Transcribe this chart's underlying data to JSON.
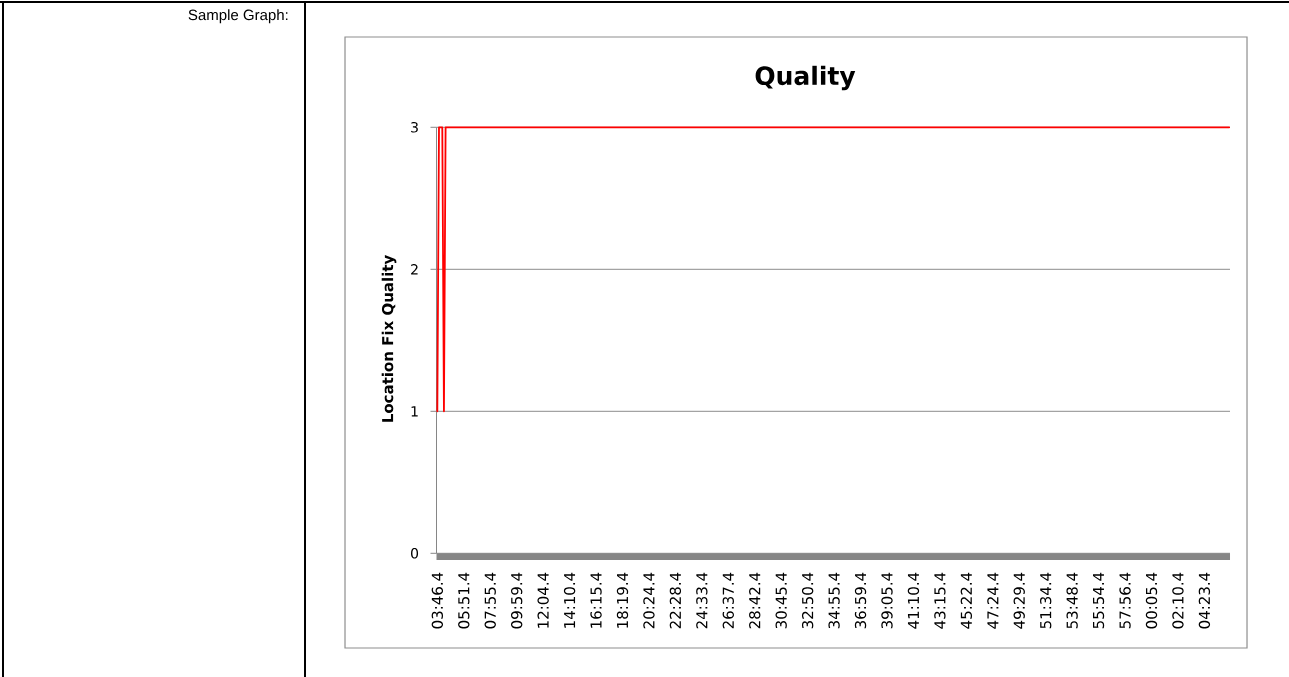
{
  "chart_data": {
    "type": "line",
    "title": "Quality",
    "ylabel": "Location Fix Quality",
    "annotations": [
      "Sample Graph:"
    ],
    "categories": [
      "03:46.4",
      null,
      null,
      null,
      null,
      null,
      null,
      null,
      null,
      null,
      null,
      null,
      null,
      null,
      null,
      null,
      "05:51.4",
      null,
      null,
      null,
      null,
      null,
      null,
      null,
      null,
      null,
      null,
      null,
      null,
      null,
      null,
      null,
      "07:55.4",
      null,
      null,
      null,
      null,
      null,
      null,
      null,
      null,
      null,
      null,
      null,
      null,
      null,
      null,
      null,
      "09:59.4",
      null,
      null,
      null,
      null,
      null,
      null,
      null,
      null,
      null,
      null,
      null,
      null,
      null,
      null,
      null,
      "12:04.4",
      null,
      null,
      null,
      null,
      null,
      null,
      null,
      null,
      null,
      null,
      null,
      null,
      null,
      null,
      null,
      "14:10.4",
      null,
      null,
      null,
      null,
      null,
      null,
      null,
      null,
      null,
      null,
      null,
      null,
      null,
      null,
      null,
      "16:15.4",
      null,
      null,
      null,
      null,
      null,
      null,
      null,
      null,
      null,
      null,
      null,
      null,
      null,
      null,
      null,
      "18:19.4",
      null,
      null,
      null,
      null,
      null,
      null,
      null,
      null,
      null,
      null,
      null,
      null,
      null,
      null,
      null,
      "20:24.4",
      null,
      null,
      null,
      null,
      null,
      null,
      null,
      null,
      null,
      null,
      null,
      null,
      null,
      null,
      null,
      "22:28.4",
      null,
      null,
      null,
      null,
      null,
      null,
      null,
      null,
      null,
      null,
      null,
      null,
      null,
      null,
      null,
      "24:33.4",
      null,
      null,
      null,
      null,
      null,
      null,
      null,
      null,
      null,
      null,
      null,
      null,
      null,
      null,
      null,
      "26:37.4",
      null,
      null,
      null,
      null,
      null,
      null,
      null,
      null,
      null,
      null,
      null,
      null,
      null,
      null,
      null,
      "28:42.4",
      null,
      null,
      null,
      null,
      null,
      null,
      null,
      null,
      null,
      null,
      null,
      null,
      null,
      null,
      null,
      "30:45.4",
      null,
      null,
      null,
      null,
      null,
      null,
      null,
      null,
      null,
      null,
      null,
      null,
      null,
      null,
      null,
      "32:50.4",
      null,
      null,
      null,
      null,
      null,
      null,
      null,
      null,
      null,
      null,
      null,
      null,
      null,
      null,
      null,
      "34:55.4",
      null,
      null,
      null,
      null,
      null,
      null,
      null,
      null,
      null,
      null,
      null,
      null,
      null,
      null,
      null,
      "36:59.4",
      null,
      null,
      null,
      null,
      null,
      null,
      null,
      null,
      null,
      null,
      null,
      null,
      null,
      null,
      null,
      "39:05.4",
      null,
      null,
      null,
      null,
      null,
      null,
      null,
      null,
      null,
      null,
      null,
      null,
      null,
      null,
      null,
      "41:10.4",
      null,
      null,
      null,
      null,
      null,
      null,
      null,
      null,
      null,
      null,
      null,
      null,
      null,
      null,
      null,
      "43:15.4",
      null,
      null,
      null,
      null,
      null,
      null,
      null,
      null,
      null,
      null,
      null,
      null,
      null,
      null,
      null,
      "45:22.4",
      null,
      null,
      null,
      null,
      null,
      null,
      null,
      null,
      null,
      null,
      null,
      null,
      null,
      null,
      null,
      "47:24.4",
      null,
      null,
      null,
      null,
      null,
      null,
      null,
      null,
      null,
      null,
      null,
      null,
      null,
      null,
      null,
      "49:29.4",
      null,
      null,
      null,
      null,
      null,
      null,
      null,
      null,
      null,
      null,
      null,
      null,
      null,
      null,
      null,
      "51:34.4",
      null,
      null,
      null,
      null,
      null,
      null,
      null,
      null,
      null,
      null,
      null,
      null,
      null,
      null,
      null,
      "53:48.4",
      null,
      null,
      null,
      null,
      null,
      null,
      null,
      null,
      null,
      null,
      null,
      null,
      null,
      null,
      null,
      "55:54.4",
      null,
      null,
      null,
      null,
      null,
      null,
      null,
      null,
      null,
      null,
      null,
      null,
      null,
      null,
      null,
      "57:56.4",
      null,
      null,
      null,
      null,
      null,
      null,
      null,
      null,
      null,
      null,
      null,
      null,
      null,
      null,
      null,
      "00:05.4",
      null,
      null,
      null,
      null,
      null,
      null,
      null,
      null,
      null,
      null,
      null,
      null,
      null,
      null,
      null,
      "02:10.4",
      null,
      null,
      null,
      null,
      null,
      null,
      null,
      null,
      null,
      null,
      null,
      null,
      null,
      null,
      null,
      "04:23.4",
      null,
      null,
      null,
      null,
      null,
      null,
      null,
      null,
      null,
      null,
      null,
      null,
      null,
      null,
      null
    ],
    "values": [
      1,
      3,
      3,
      3,
      1,
      3,
      3,
      3,
      3,
      3,
      3,
      3,
      3,
      3,
      3,
      3,
      3,
      3,
      3,
      3,
      3,
      3,
      3,
      3,
      3,
      3,
      3,
      3,
      3,
      3,
      3,
      3,
      3,
      3,
      3,
      3,
      3,
      3,
      3,
      3,
      3,
      3,
      3,
      3,
      3,
      3,
      3,
      3,
      3,
      3,
      3,
      3,
      3,
      3,
      3,
      3,
      3,
      3,
      3,
      3,
      3,
      3,
      3,
      3,
      3,
      3,
      3,
      3,
      3,
      3,
      3,
      3,
      3,
      3,
      3,
      3,
      3,
      3,
      3,
      3,
      3,
      3,
      3,
      3,
      3,
      3,
      3,
      3,
      3,
      3,
      3,
      3,
      3,
      3,
      3,
      3,
      3,
      3,
      3,
      3,
      3,
      3,
      3,
      3,
      3,
      3,
      3,
      3,
      3,
      3,
      3,
      3,
      3,
      3,
      3,
      3,
      3,
      3,
      3,
      3,
      3,
      3,
      3,
      3,
      3,
      3,
      3,
      3,
      3,
      3,
      3,
      3,
      3,
      3,
      3,
      3,
      3,
      3,
      3,
      3,
      3,
      3,
      3,
      3,
      3,
      3,
      3,
      3,
      3,
      3,
      3,
      3,
      3,
      3,
      3,
      3,
      3,
      3,
      3,
      3,
      3,
      3,
      3,
      3,
      3,
      3,
      3,
      3,
      3,
      3,
      3,
      3,
      3,
      3,
      3,
      3,
      3,
      3,
      3,
      3,
      3,
      3,
      3,
      3,
      3,
      3,
      3,
      3,
      3,
      3,
      3,
      3,
      3,
      3,
      3,
      3,
      3,
      3,
      3,
      3,
      3,
      3,
      3,
      3,
      3,
      3,
      3,
      3,
      3,
      3,
      3,
      3,
      3,
      3,
      3,
      3,
      3,
      3,
      3,
      3,
      3,
      3,
      3,
      3,
      3,
      3,
      3,
      3,
      3,
      3,
      3,
      3,
      3,
      3,
      3,
      3,
      3,
      3,
      3,
      3,
      3,
      3,
      3,
      3,
      3,
      3,
      3,
      3,
      3,
      3,
      3,
      3,
      3,
      3,
      3,
      3,
      3,
      3,
      3,
      3,
      3,
      3,
      3,
      3,
      3,
      3,
      3,
      3,
      3,
      3,
      3,
      3,
      3,
      3,
      3,
      3,
      3,
      3,
      3,
      3,
      3,
      3,
      3,
      3,
      3,
      3,
      3,
      3,
      3,
      3,
      3,
      3,
      3,
      3,
      3,
      3,
      3,
      3,
      3,
      3,
      3,
      3,
      3,
      3,
      3,
      3,
      3,
      3,
      3,
      3,
      3,
      3,
      3,
      3,
      3,
      3,
      3,
      3,
      3,
      3,
      3,
      3,
      3,
      3,
      3,
      3,
      3,
      3,
      3,
      3,
      3,
      3,
      3,
      3,
      3,
      3,
      3,
      3,
      3,
      3,
      3,
      3,
      3,
      3,
      3,
      3,
      3,
      3,
      3,
      3,
      3,
      3,
      3,
      3,
      3,
      3,
      3,
      3,
      3,
      3,
      3,
      3,
      3,
      3,
      3,
      3,
      3,
      3,
      3,
      3,
      3,
      3,
      3,
      3,
      3,
      3,
      3,
      3,
      3,
      3,
      3,
      3,
      3,
      3,
      3,
      3,
      3,
      3,
      3,
      3,
      3,
      3,
      3,
      3,
      3,
      3,
      3,
      3,
      3,
      3,
      3,
      3,
      3,
      3,
      3,
      3,
      3,
      3,
      3,
      3,
      3,
      3,
      3,
      3,
      3,
      3,
      3,
      3,
      3,
      3,
      3,
      3,
      3,
      3,
      3,
      3,
      3,
      3,
      3,
      3,
      3,
      3,
      3,
      3,
      3,
      3,
      3,
      3,
      3,
      3,
      3,
      3,
      3,
      3,
      3,
      3,
      3,
      3,
      3,
      3,
      3,
      3,
      3,
      3,
      3,
      3,
      3,
      3,
      3,
      3,
      3,
      3,
      3,
      3,
      3,
      3,
      3,
      3,
      3,
      3,
      3,
      3,
      3,
      3,
      3,
      3,
      3,
      3,
      3,
      3
    ],
    "color": "#ff0000",
    "marker": "none",
    "ylim": [
      0,
      3
    ],
    "yticks": [
      0,
      1,
      2,
      3
    ],
    "grid": "y"
  }
}
